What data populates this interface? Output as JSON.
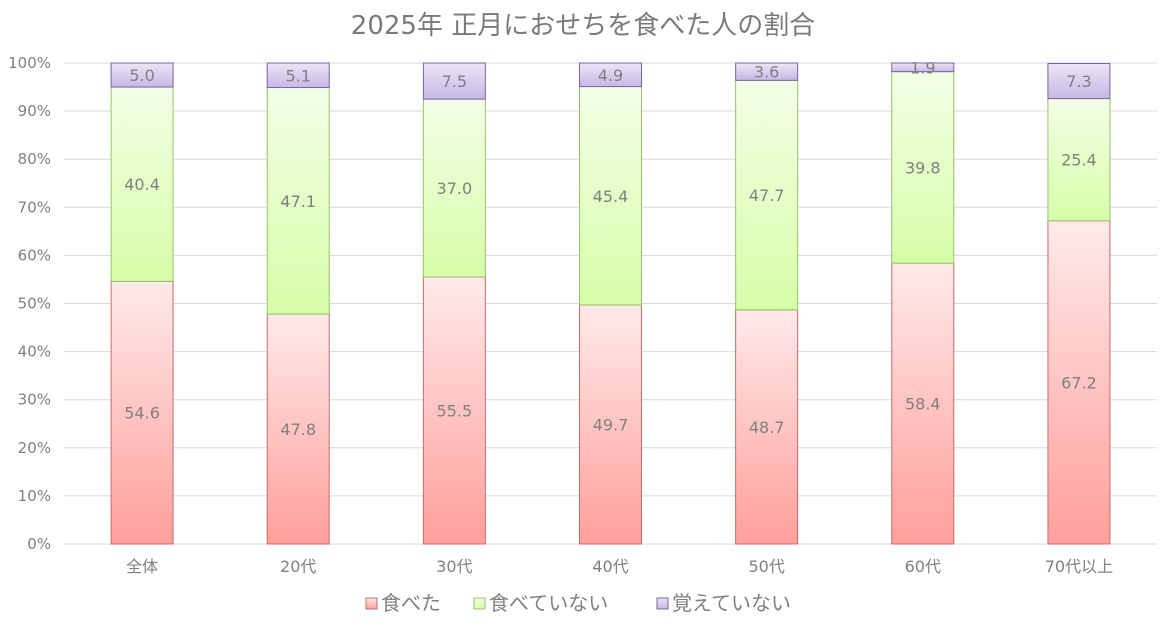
{
  "chart_data": {
    "type": "bar",
    "stacked": true,
    "title": "2025年  正月におせちを食べた人の割合",
    "categories": [
      "全体",
      "20代",
      "30代",
      "40代",
      "50代",
      "60代",
      "70代以上"
    ],
    "series": [
      {
        "name": "食べた",
        "values": [
          54.6,
          47.8,
          55.5,
          49.7,
          48.7,
          58.4,
          67.2
        ],
        "labels": [
          "54.6",
          "47.8",
          "55.5",
          "49.7",
          "48.7",
          "58.4",
          "67.2"
        ]
      },
      {
        "name": "食べていない",
        "values": [
          40.4,
          47.1,
          37.0,
          45.4,
          47.7,
          39.8,
          25.4
        ],
        "labels": [
          "40.4",
          "47.1",
          "37.0",
          "45.4",
          "47.7",
          "39.8",
          "25.4"
        ]
      },
      {
        "name": "覚えていない",
        "values": [
          5.0,
          5.1,
          7.5,
          4.9,
          3.6,
          1.9,
          7.3
        ],
        "labels": [
          "5.0",
          "5.1",
          "7.5",
          "4.9",
          "3.6",
          "1.9",
          "7.3"
        ]
      }
    ],
    "ylim": [
      0,
      100
    ],
    "yticks": [
      "0%",
      "10%",
      "20%",
      "30%",
      "40%",
      "50%",
      "60%",
      "70%",
      "80%",
      "90%",
      "100%"
    ],
    "grid": true,
    "legend_position": "bottom",
    "colors": {
      "ate_top": "#ffeaea",
      "ate_bottom": "#ff9f9a",
      "ate_stroke": "#c96b6b",
      "notate_top": "#f3ffe6",
      "notate_bottom": "#d6fda8",
      "notate_stroke": "#98c36a",
      "forgot_top": "#ece6f7",
      "forgot_bottom": "#c7b7e5",
      "forgot_stroke": "#7a62a8",
      "text": "#808080",
      "grid": "#d9d9d9"
    }
  }
}
